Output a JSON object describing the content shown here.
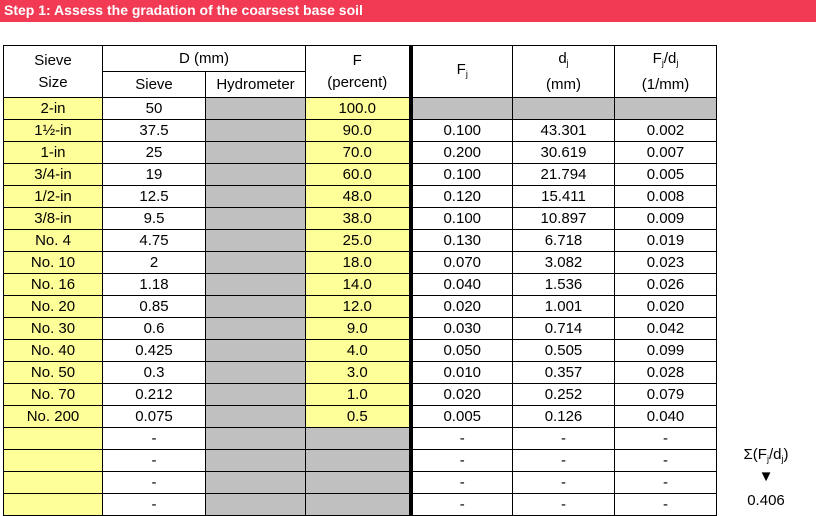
{
  "title": "Step 1: Assess the gradation of the coarsest base soil",
  "headers": {
    "sieve_size": [
      "Sieve",
      "Size"
    ],
    "d_mm": "D (mm)",
    "sieve": "Sieve",
    "hydrometer": "Hydrometer",
    "f": [
      "F",
      "(percent)"
    ],
    "fj": "F",
    "fj_sub": "j",
    "dj": [
      "d",
      "(mm)"
    ],
    "dj_sub": "j",
    "fjdj_a": "F",
    "fjdj_sub1": "j",
    "fjdj_b": "/d",
    "fjdj_sub2": "j",
    "fjdj_unit": "(1/mm)"
  },
  "rows": [
    {
      "size": "2-in",
      "sieve": "50",
      "f": "100.0",
      "fj": "",
      "dj": "",
      "fjdj": ""
    },
    {
      "size": "1½-in",
      "sieve": "37.5",
      "f": "90.0",
      "fj": "0.100",
      "dj": "43.301",
      "fjdj": "0.002"
    },
    {
      "size": "1-in",
      "sieve": "25",
      "f": "70.0",
      "fj": "0.200",
      "dj": "30.619",
      "fjdj": "0.007"
    },
    {
      "size": "3/4-in",
      "sieve": "19",
      "f": "60.0",
      "fj": "0.100",
      "dj": "21.794",
      "fjdj": "0.005"
    },
    {
      "size": "1/2-in",
      "sieve": "12.5",
      "f": "48.0",
      "fj": "0.120",
      "dj": "15.411",
      "fjdj": "0.008"
    },
    {
      "size": "3/8-in",
      "sieve": "9.5",
      "f": "38.0",
      "fj": "0.100",
      "dj": "10.897",
      "fjdj": "0.009"
    },
    {
      "size": "No. 4",
      "sieve": "4.75",
      "f": "25.0",
      "fj": "0.130",
      "dj": "6.718",
      "fjdj": "0.019"
    },
    {
      "size": "No. 10",
      "sieve": "2",
      "f": "18.0",
      "fj": "0.070",
      "dj": "3.082",
      "fjdj": "0.023"
    },
    {
      "size": "No. 16",
      "sieve": "1.18",
      "f": "14.0",
      "fj": "0.040",
      "dj": "1.536",
      "fjdj": "0.026"
    },
    {
      "size": "No. 20",
      "sieve": "0.85",
      "f": "12.0",
      "fj": "0.020",
      "dj": "1.001",
      "fjdj": "0.020"
    },
    {
      "size": "No. 30",
      "sieve": "0.6",
      "f": "9.0",
      "fj": "0.030",
      "dj": "0.714",
      "fjdj": "0.042"
    },
    {
      "size": "No. 40",
      "sieve": "0.425",
      "f": "4.0",
      "fj": "0.050",
      "dj": "0.505",
      "fjdj": "0.099"
    },
    {
      "size": "No. 50",
      "sieve": "0.3",
      "f": "3.0",
      "fj": "0.010",
      "dj": "0.357",
      "fjdj": "0.028"
    },
    {
      "size": "No. 70",
      "sieve": "0.212",
      "f": "1.0",
      "fj": "0.020",
      "dj": "0.252",
      "fjdj": "0.079"
    },
    {
      "size": "No. 200",
      "sieve": "0.075",
      "f": "0.5",
      "fj": "0.005",
      "dj": "0.126",
      "fjdj": "0.040"
    },
    {
      "size": "",
      "sieve": "-",
      "f": "",
      "fj": "-",
      "dj": "-",
      "fjdj": "-"
    },
    {
      "size": "",
      "sieve": "-",
      "f": "",
      "fj": "-",
      "dj": "-",
      "fjdj": "-"
    },
    {
      "size": "",
      "sieve": "-",
      "f": "",
      "fj": "-",
      "dj": "-",
      "fjdj": "-"
    },
    {
      "size": "",
      "sieve": "-",
      "f": "",
      "fj": "-",
      "dj": "-",
      "fjdj": "-"
    }
  ],
  "summary": {
    "sigma_a": "Σ(F",
    "sigma_sub1": "j",
    "sigma_b": "/d",
    "sigma_sub2": "j",
    "sigma_c": ")",
    "arrow": "▼",
    "value": "0.406"
  },
  "colors": {
    "banner": "#f23a55",
    "input": "#ffff99",
    "disabled": "#c0c0c0"
  }
}
